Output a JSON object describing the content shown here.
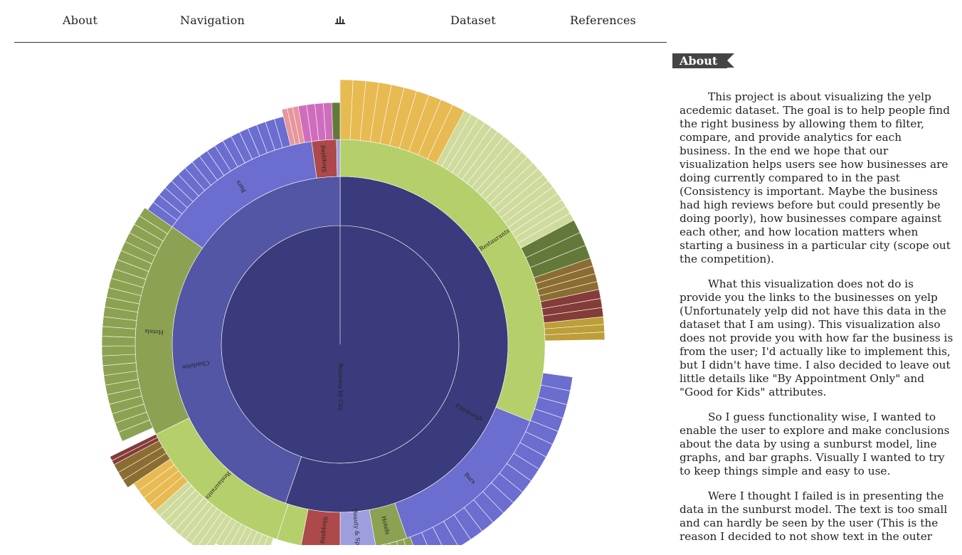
{
  "nav": {
    "about": "About",
    "navigation": "Navigation",
    "chart_icon": "bar-chart-icon",
    "dataset": "Dataset",
    "references": "References"
  },
  "sunburst": {
    "root_label": "Business by City",
    "cities": [
      "Pittsburgh",
      "Charlotte"
    ],
    "categories": [
      "Restaurants",
      "Bars",
      "Hotels",
      "Shopping",
      "Beauty & Spas",
      "Restaurants",
      "Hotels",
      "Bars",
      "Shopping"
    ],
    "colors": {
      "root": "#3a3b7c",
      "city": "#5355a5",
      "restaurants": "#b5cf6b",
      "bars": "#6b6ecf",
      "hotels": "#8ca252",
      "shopping": "#ad494a",
      "beauty": "#9c9ede",
      "outer_yellow": "#e7ba52",
      "outer_pale": "#cedb9c"
    }
  },
  "panel": {
    "tag": "About",
    "paragraphs": [
      "This project is about visualizing the yelp acedemic dataset. The goal is to help people find the right business by allowing them to filter, compare, and provide analytics for each business. In the end we hope that our visualization helps users see how businesses are doing currently compared to in the past (Consistency is important. Maybe the business had high reviews before but could presently be doing poorly), how businesses compare against each other, and how location matters when starting a business in a particular city (scope out the competition).",
      "What this visualization does not do is provide you the links to the businesses on yelp (Unfortunately yelp did not have this data in the dataset that I am using). This visualization also does not provide you with how far the business is from the user; I'd actually like to implement this, but I didn't have time. I also decided to leave out little details like \"By Appointment Only\" and \"Good for Kids\" attributes.",
      "So I guess functionality wise, I wanted to enable the user to explore and make conclusions about the data by using a sunburst model, line graphs, and bar graphs. Visually I wanted to try to keep things simple and easy to use.",
      "Were I thought I failed is in presenting the data in the sunburst model. The text is too small and can hardly be seen by the user (This is the reason I decided to not show text in the outer"
    ]
  }
}
